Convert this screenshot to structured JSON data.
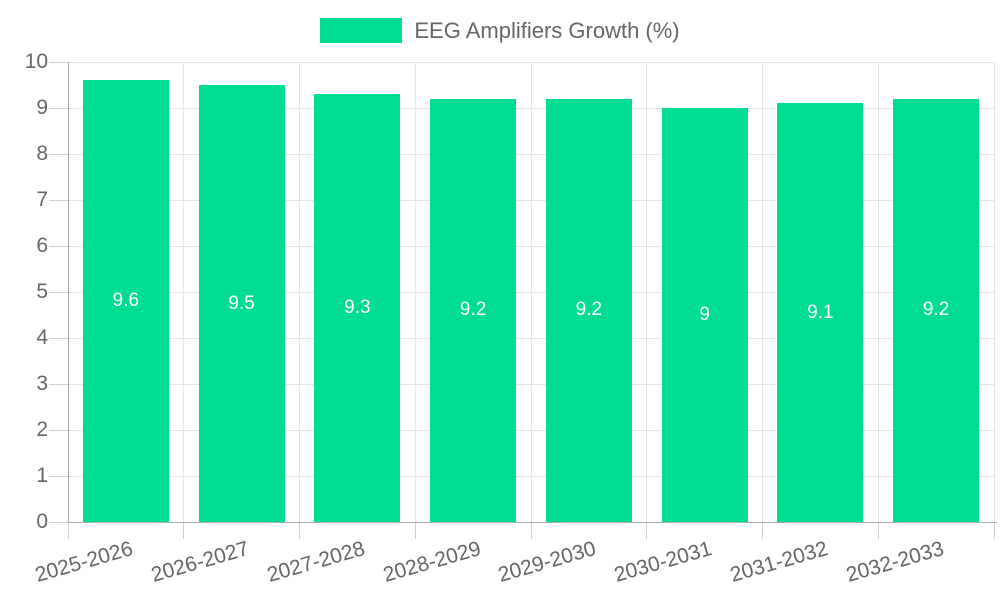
{
  "chart_data": {
    "type": "bar",
    "title": "EEG Amplifiers Growth (%)",
    "categories": [
      "2025-2026",
      "2026-2027",
      "2027-2028",
      "2028-2029",
      "2029-2030",
      "2030-2031",
      "2031-2032",
      "2032-2033"
    ],
    "values": [
      9.6,
      9.5,
      9.3,
      9.2,
      9.2,
      9,
      9.1,
      9.2
    ],
    "value_labels": [
      "9.6",
      "9.5",
      "9.3",
      "9.2",
      "9.2",
      "9",
      "9.1",
      "9.2"
    ],
    "ylim": [
      0,
      10
    ],
    "y_ticks": [
      "0",
      "1",
      "2",
      "3",
      "4",
      "5",
      "6",
      "7",
      "8",
      "9",
      "10"
    ],
    "xlabel": "",
    "ylabel": "",
    "grid": true,
    "legend_position": "top"
  },
  "legend": {
    "label": "EEG Amplifiers Growth (%)"
  },
  "colors": {
    "bar": "#00dd92",
    "value_label": "#ffffff",
    "axis_text": "#666666",
    "gridline": "#e5e5e5",
    "axis_line": "#adadad",
    "tick": "#cfcfcf",
    "background": "#ffffff"
  }
}
